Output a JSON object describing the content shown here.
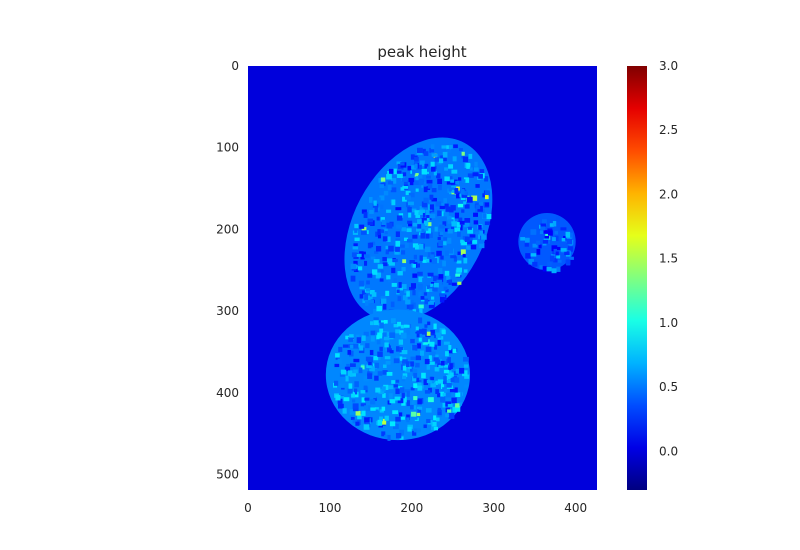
{
  "chart_data": {
    "type": "heatmap",
    "title": "peak height",
    "xlabel": "",
    "ylabel": "",
    "xlim": [
      0,
      426
    ],
    "ylim": [
      0,
      519
    ],
    "y_inverted": true,
    "grid": false,
    "colormap": "jet",
    "x_ticks": [
      "0",
      "100",
      "200",
      "300",
      "400"
    ],
    "y_ticks": [
      "0",
      "100",
      "200",
      "300",
      "400",
      "500"
    ],
    "colorbar": {
      "range": [
        -0.3,
        3.0
      ],
      "ticks": [
        "0.0",
        "0.5",
        "1.0",
        "1.5",
        "2.0",
        "2.5",
        "3.0"
      ],
      "tick_values": [
        0.0,
        0.5,
        1.0,
        1.5,
        2.0,
        2.5,
        3.0
      ]
    },
    "background_value": 0.0,
    "regions": [
      {
        "center": [
          208,
          200
        ],
        "radii": [
          80,
          120
        ],
        "mean_value": 0.5
      },
      {
        "center": [
          365,
          215
        ],
        "radii": [
          35,
          35
        ],
        "mean_value": 0.4
      },
      {
        "center": [
          183,
          378
        ],
        "radii": [
          88,
          80
        ],
        "mean_value": 0.55
      }
    ]
  }
}
